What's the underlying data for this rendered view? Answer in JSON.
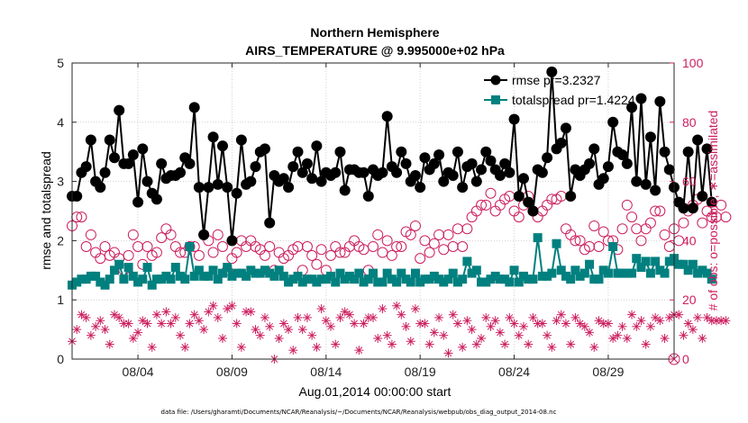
{
  "chart_data": {
    "type": "line",
    "title_line1": "Northern Hemisphere",
    "title_line2": "AIRS_TEMPERATURE @ 9.995000e+02 hPa",
    "xlabel": "Aug.01,2014 00:00:00 start",
    "ylabel_left": "rmse and totalspread",
    "ylabel_right": "# of obs: o=possible; ∗=assimilated",
    "footer": "data file: /Users/gharamti/Documents/NCAR/Reanalysis/~/Documents/NCAR/Reanalysis/webpub/obs_diag_output_2014-08.nc",
    "x_unit": "day of August 2014 (6-hourly)",
    "xlim": [
      0.5,
      32.5
    ],
    "ylim_left": [
      0,
      5
    ],
    "ylim_right": [
      0,
      100
    ],
    "x_ticks": [
      {
        "value": 4,
        "label": "08/04"
      },
      {
        "value": 9,
        "label": "08/09"
      },
      {
        "value": 14,
        "label": "08/14"
      },
      {
        "value": 19,
        "label": "08/19"
      },
      {
        "value": 24,
        "label": "08/24"
      },
      {
        "value": 29,
        "label": "08/29"
      }
    ],
    "y_ticks_left": [
      "0",
      "1",
      "2",
      "3",
      "4",
      "5"
    ],
    "y_ticks_right": [
      "0",
      "20",
      "40",
      "60",
      "80",
      "100"
    ],
    "grid": "dotted",
    "legend_position": "top-right",
    "colors": {
      "rmse": "#000000",
      "totalspread": "#00807f",
      "obs": "#cc1f5f"
    },
    "series": [
      {
        "name": "rmse pr=3.2327",
        "axis": "left",
        "marker": "filled-circle",
        "x_start": 0.5,
        "x_step": 0.25,
        "values": [
          2.75,
          2.75,
          3.15,
          3.25,
          3.7,
          3.0,
          2.9,
          3.15,
          3.7,
          3.4,
          4.2,
          3.3,
          3.3,
          3.45,
          2.65,
          3.55,
          3.0,
          2.8,
          2.7,
          3.3,
          3.05,
          3.1,
          3.1,
          3.15,
          3.4,
          3.3,
          4.25,
          2.9,
          2.1,
          2.9,
          3.75,
          2.95,
          3.6,
          2.9,
          2.0,
          2.8,
          3.7,
          2.95,
          3.0,
          3.25,
          3.5,
          3.55,
          2.3,
          3.1,
          3.0,
          3.05,
          2.9,
          3.25,
          3.5,
          3.15,
          3.3,
          3.05,
          3.6,
          3.0,
          3.15,
          3.1,
          3.15,
          3.5,
          2.85,
          3.2,
          3.2,
          3.15,
          3.15,
          2.75,
          3.2,
          3.1,
          3.15,
          4.1,
          3.25,
          3.15,
          3.5,
          3.3,
          3.0,
          3.1,
          2.9,
          3.4,
          3.2,
          3.3,
          3.45,
          3.0,
          3.15,
          3.1,
          3.5,
          2.9,
          3.25,
          3.3,
          3.0,
          3.2,
          3.5,
          3.35,
          3.2,
          3.1,
          3.3,
          3.15,
          4.05,
          2.75,
          3.05,
          2.65,
          2.5,
          3.2,
          3.15,
          3.4,
          4.85,
          3.55,
          3.65,
          3.9,
          2.75,
          3.2,
          3.1,
          3.2,
          3.3,
          3.55,
          2.95,
          3.05,
          3.25,
          4.0,
          3.5,
          3.45,
          3.3,
          4.25,
          3.0,
          4.4,
          2.95,
          3.75,
          2.85,
          4.35,
          3.5,
          3.2,
          2.9,
          2.65,
          2.55,
          3.5,
          2.55,
          3.7,
          2.75,
          3.55,
          2.65
        ],
        "note": "every value at 6-hour steps starting Aug 1 00Z"
      },
      {
        "name": "totalspread pr=1.4224",
        "axis": "left",
        "marker": "filled-square",
        "x_start": 0.5,
        "x_step": 0.25,
        "values": [
          1.25,
          1.3,
          1.35,
          1.35,
          1.4,
          1.4,
          1.3,
          1.25,
          1.35,
          1.5,
          1.6,
          1.35,
          1.55,
          1.4,
          1.3,
          1.35,
          1.55,
          1.25,
          1.35,
          1.35,
          1.4,
          1.35,
          1.55,
          1.4,
          1.35,
          1.9,
          1.4,
          1.5,
          1.4,
          1.4,
          1.5,
          1.35,
          1.45,
          1.55,
          1.4,
          1.45,
          1.45,
          1.4,
          1.5,
          1.45,
          1.45,
          1.5,
          1.45,
          1.4,
          1.5,
          1.4,
          1.3,
          1.35,
          1.4,
          1.3,
          1.35,
          1.35,
          1.3,
          1.35,
          1.35,
          1.4,
          1.3,
          1.45,
          1.35,
          1.4,
          1.35,
          1.45,
          1.3,
          1.35,
          1.45,
          1.3,
          1.3,
          1.45,
          1.35,
          1.3,
          1.45,
          1.35,
          1.3,
          1.45,
          1.3,
          1.35,
          1.35,
          1.4,
          1.35,
          1.3,
          1.35,
          1.45,
          1.3,
          1.35,
          1.65,
          1.45,
          1.5,
          1.3,
          1.3,
          1.35,
          1.4,
          1.35,
          1.35,
          1.3,
          1.5,
          1.3,
          1.4,
          1.35,
          1.35,
          2.05,
          1.4,
          1.4,
          1.45,
          1.95,
          1.5,
          1.4,
          1.35,
          1.5,
          1.4,
          1.45,
          1.6,
          1.35,
          1.35,
          1.5,
          1.45,
          1.9,
          1.45,
          1.45,
          1.45,
          1.45,
          1.7,
          1.55,
          1.65,
          1.45,
          1.65,
          1.5,
          1.45,
          1.65,
          1.7,
          1.6,
          1.6,
          1.5,
          1.6,
          1.45,
          1.5,
          1.45,
          1.35
        ],
        "note": "every value at 6-hour steps starting Aug 1 00Z"
      },
      {
        "name": "possible",
        "axis": "right",
        "marker": "open-circle",
        "x_start": 0.5,
        "x_step": 0.25,
        "values": [
          45,
          48,
          48,
          38,
          42,
          36,
          34,
          38,
          35,
          36,
          34,
          30,
          35,
          42,
          38,
          32,
          38,
          35,
          36,
          41,
          44,
          42,
          38,
          36,
          36,
          38,
          38,
          35,
          42,
          40,
          36,
          42,
          38,
          30,
          34,
          36,
          40,
          38,
          40,
          38,
          37,
          35,
          38,
          30,
          36,
          34,
          35,
          37,
          38,
          30,
          38,
          35,
          32,
          37,
          30,
          35,
          38,
          36,
          36,
          38,
          40,
          38,
          37,
          30,
          38,
          42,
          36,
          40,
          35,
          38,
          38,
          43,
          42,
          45,
          34,
          40,
          36,
          39,
          42,
          37,
          42,
          38,
          44,
          38,
          44,
          48,
          50,
          52,
          52,
          56,
          50,
          52,
          54,
          55,
          50,
          48,
          52,
          55,
          50,
          48,
          50,
          52,
          54,
          54,
          55,
          44,
          42,
          40,
          40,
          37,
          38,
          45,
          38,
          43,
          40,
          40,
          37,
          44,
          52,
          48,
          44,
          40,
          44,
          46,
          50,
          50,
          42,
          38,
          44,
          40,
          46,
          50,
          52,
          54,
          46,
          50,
          48,
          48,
          52,
          48
        ],
        "note": "observation counts on the right axis"
      },
      {
        "name": "assimilated",
        "axis": "right",
        "marker": "asterisk",
        "x_start": 0.5,
        "x_step": 0.25,
        "values": [
          6,
          10,
          15,
          14,
          8,
          11,
          13,
          10,
          5,
          15,
          14,
          12,
          12,
          7,
          9,
          13,
          12,
          4,
          15,
          12,
          16,
          12,
          14,
          8,
          4,
          12,
          15,
          13,
          10,
          16,
          18,
          14,
          7,
          17,
          18,
          12,
          4,
          16,
          16,
          10,
          8,
          14,
          11,
          0,
          7,
          12,
          10,
          3,
          14,
          10,
          14,
          8,
          4,
          17,
          13,
          11,
          5,
          14,
          16,
          15,
          12,
          3,
          12,
          14,
          14,
          7,
          17,
          8,
          5,
          18,
          15,
          11,
          6,
          17,
          12,
          12,
          5,
          9,
          14,
          8,
          2,
          15,
          12,
          4,
          13,
          10,
          5,
          7,
          14,
          11,
          13,
          9,
          5,
          14,
          12,
          8,
          11,
          5,
          14,
          12,
          12,
          8,
          4,
          13,
          15,
          12,
          5,
          14,
          12,
          11,
          9,
          4,
          13,
          12,
          12,
          7,
          8,
          11,
          7,
          15,
          11,
          13,
          5,
          11,
          14,
          13,
          7,
          14,
          15,
          15,
          8,
          12,
          10,
          14,
          7,
          14,
          13,
          13,
          13,
          13
        ],
        "note": "observation counts on the right axis"
      }
    ]
  }
}
